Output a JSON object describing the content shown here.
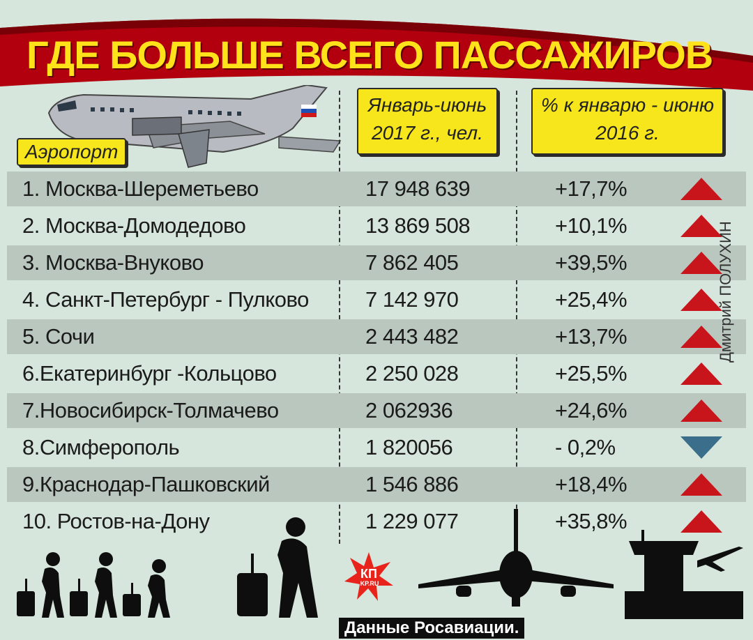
{
  "title": "ГДЕ БОЛЬШЕ ВСЕГО ПАССАЖИРОВ",
  "headers": {
    "airport": "Аэропорт",
    "period_line1": "Январь-июнь",
    "period_line2": "2017 г., чел.",
    "change_line1": "% к январю - июню",
    "change_line2": "2016 г."
  },
  "rows": [
    {
      "name": "1. Москва-Шереметьево",
      "passengers": "17 948 639",
      "change": "+17,7%",
      "trend": "up"
    },
    {
      "name": "2. Москва-Домодедово",
      "passengers": "13 869 508",
      "change": "+10,1%",
      "trend": "up"
    },
    {
      "name": "3. Москва-Внуково",
      "passengers": "7 862 405",
      "change": "+39,5%",
      "trend": "up"
    },
    {
      "name": "4. Санкт-Петербург - Пулково",
      "passengers": "7 142 970",
      "change": "+25,4%",
      "trend": "up"
    },
    {
      "name": "5. Сочи",
      "passengers": "2 443 482",
      "change": "+13,7%",
      "trend": "up"
    },
    {
      "name": "6.Екатеринбург -Кольцово",
      "passengers": "2 250 028",
      "change": "+25,5%",
      "trend": "up"
    },
    {
      "name": "7.Новосибирск-Толмачево",
      "passengers": "2 062936",
      "change": "+24,6%",
      "trend": "up"
    },
    {
      "name": "8.Симферополь",
      "passengers": "1 820056",
      "change": "- 0,2%",
      "trend": "down"
    },
    {
      "name": "9.Краснодар-Пашковский",
      "passengers": "1 546 886",
      "change": "+18,4%",
      "trend": "up"
    },
    {
      "name": "10. Ростов-на-Дону",
      "passengers": "1 229 077",
      "change": "+35,8%",
      "trend": "up"
    }
  ],
  "credit": "Дмитрий ПОЛУХИН",
  "source": "Данные Росавиации.",
  "logo_text": "КП",
  "logo_subtext": "KP.RU",
  "colors": {
    "background": "#d6e6dc",
    "row_shade": "#b9c7bf",
    "banner": "#b3000f",
    "title_text": "#ffe21a",
    "label_fill": "#f7e61b",
    "up_arrow": "#c8141b",
    "down_arrow": "#3b6e8a",
    "silhouette": "#0e0e0e"
  },
  "icons": {
    "up": "triangle-up-icon",
    "down": "triangle-down-icon",
    "plane": "airplane-illustration",
    "travelers": "traveler-silhouette-icon",
    "tower": "control-tower-icon"
  }
}
